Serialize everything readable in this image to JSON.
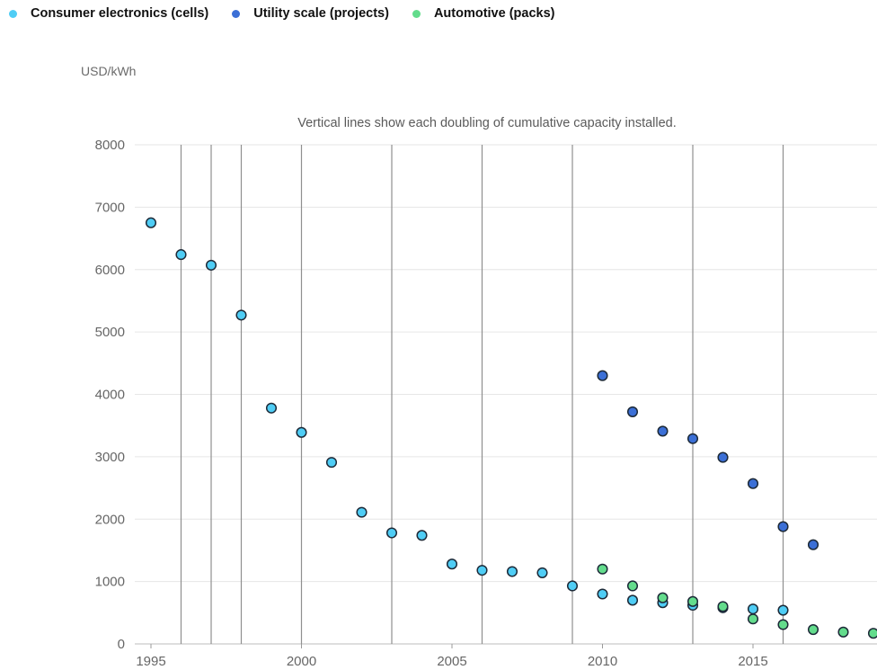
{
  "chart_data": {
    "type": "scatter",
    "title": "",
    "ylabel": "USD/kWh",
    "xlabel": "",
    "annotation": "Vertical lines show each doubling of cumulative capacity installed.",
    "xlim": [
      1995,
      2019
    ],
    "ylim": [
      0,
      8000
    ],
    "x_ticks": [
      1995,
      2000,
      2005,
      2010,
      2015
    ],
    "y_ticks": [
      0,
      1000,
      2000,
      3000,
      4000,
      5000,
      6000,
      7000,
      8000
    ],
    "doubling_lines": [
      1996,
      1997,
      1998,
      2000,
      2003,
      2006,
      2009,
      2013,
      2016
    ],
    "legend_position": "top-left",
    "grid": "horizontal",
    "series": [
      {
        "name": "Consumer electronics (cells)",
        "color": "#4fcdf5",
        "points": [
          {
            "x": 1995,
            "y": 6750
          },
          {
            "x": 1996,
            "y": 6240
          },
          {
            "x": 1997,
            "y": 6070
          },
          {
            "x": 1998,
            "y": 5270
          },
          {
            "x": 1999,
            "y": 3780
          },
          {
            "x": 2000,
            "y": 3390
          },
          {
            "x": 2001,
            "y": 2910
          },
          {
            "x": 2002,
            "y": 2110
          },
          {
            "x": 2003,
            "y": 1780
          },
          {
            "x": 2004,
            "y": 1740
          },
          {
            "x": 2005,
            "y": 1280
          },
          {
            "x": 2006,
            "y": 1180
          },
          {
            "x": 2007,
            "y": 1160
          },
          {
            "x": 2008,
            "y": 1140
          },
          {
            "x": 2009,
            "y": 930
          },
          {
            "x": 2010,
            "y": 800
          },
          {
            "x": 2011,
            "y": 700
          },
          {
            "x": 2012,
            "y": 660
          },
          {
            "x": 2013,
            "y": 620
          },
          {
            "x": 2014,
            "y": 580
          },
          {
            "x": 2015,
            "y": 560
          },
          {
            "x": 2016,
            "y": 540
          }
        ]
      },
      {
        "name": "Utility scale (projects)",
        "color": "#3b6fd6",
        "points": [
          {
            "x": 2010,
            "y": 4300
          },
          {
            "x": 2011,
            "y": 3720
          },
          {
            "x": 2012,
            "y": 3410
          },
          {
            "x": 2013,
            "y": 3290
          },
          {
            "x": 2014,
            "y": 2990
          },
          {
            "x": 2015,
            "y": 2570
          },
          {
            "x": 2016,
            "y": 1880
          },
          {
            "x": 2017,
            "y": 1590
          }
        ]
      },
      {
        "name": "Automotive (packs)",
        "color": "#63dc8c",
        "points": [
          {
            "x": 2010,
            "y": 1200
          },
          {
            "x": 2011,
            "y": 930
          },
          {
            "x": 2012,
            "y": 740
          },
          {
            "x": 2013,
            "y": 680
          },
          {
            "x": 2014,
            "y": 600
          },
          {
            "x": 2015,
            "y": 400
          },
          {
            "x": 2016,
            "y": 310
          },
          {
            "x": 2017,
            "y": 230
          },
          {
            "x": 2018,
            "y": 190
          },
          {
            "x": 2019,
            "y": 170
          }
        ]
      }
    ]
  }
}
